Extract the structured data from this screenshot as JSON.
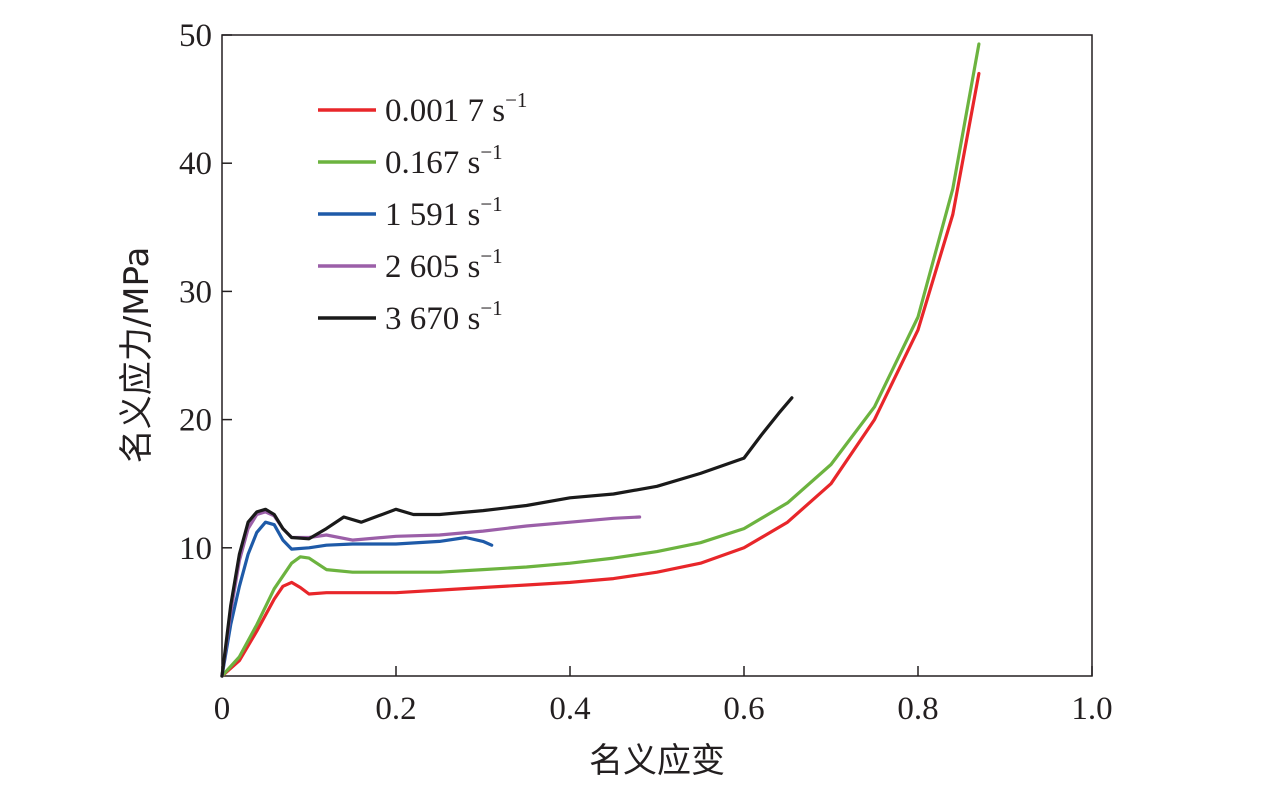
{
  "chart_data": {
    "type": "line",
    "title": "",
    "xlabel": "名义应变",
    "ylabel": "名义应力/MPa",
    "xlim": [
      0,
      1.0
    ],
    "ylim": [
      0,
      50
    ],
    "x_ticks": [
      "0",
      "0.2",
      "0.4",
      "0.6",
      "0.8",
      "1.0"
    ],
    "y_ticks": [
      "10",
      "20",
      "30",
      "40",
      "50"
    ],
    "grid": false,
    "legend_position": "top-left",
    "series": [
      {
        "name": "0.001 7 s",
        "name_sup": "−1",
        "color": "#e8262a",
        "points": [
          [
            0,
            0
          ],
          [
            0.02,
            1.2
          ],
          [
            0.04,
            3.5
          ],
          [
            0.06,
            6.0
          ],
          [
            0.07,
            7.0
          ],
          [
            0.08,
            7.3
          ],
          [
            0.09,
            6.9
          ],
          [
            0.1,
            6.4
          ],
          [
            0.12,
            6.5
          ],
          [
            0.15,
            6.5
          ],
          [
            0.2,
            6.5
          ],
          [
            0.25,
            6.7
          ],
          [
            0.3,
            6.9
          ],
          [
            0.35,
            7.1
          ],
          [
            0.4,
            7.3
          ],
          [
            0.45,
            7.6
          ],
          [
            0.5,
            8.1
          ],
          [
            0.55,
            8.8
          ],
          [
            0.6,
            10.0
          ],
          [
            0.65,
            12.0
          ],
          [
            0.7,
            15.0
          ],
          [
            0.75,
            20.0
          ],
          [
            0.8,
            27.0
          ],
          [
            0.84,
            36.0
          ],
          [
            0.87,
            47.0
          ]
        ]
      },
      {
        "name": "0.167 s",
        "name_sup": "−1",
        "color": "#6cb33f",
        "points": [
          [
            0,
            0
          ],
          [
            0.02,
            1.5
          ],
          [
            0.04,
            4.0
          ],
          [
            0.06,
            6.8
          ],
          [
            0.08,
            8.8
          ],
          [
            0.09,
            9.3
          ],
          [
            0.1,
            9.2
          ],
          [
            0.12,
            8.3
          ],
          [
            0.15,
            8.1
          ],
          [
            0.2,
            8.1
          ],
          [
            0.25,
            8.1
          ],
          [
            0.3,
            8.3
          ],
          [
            0.35,
            8.5
          ],
          [
            0.4,
            8.8
          ],
          [
            0.45,
            9.2
          ],
          [
            0.5,
            9.7
          ],
          [
            0.55,
            10.4
          ],
          [
            0.6,
            11.5
          ],
          [
            0.65,
            13.5
          ],
          [
            0.7,
            16.5
          ],
          [
            0.75,
            21.0
          ],
          [
            0.8,
            28.0
          ],
          [
            0.84,
            38.0
          ],
          [
            0.87,
            49.3
          ]
        ]
      },
      {
        "name": "1 591 s",
        "name_sup": "−1",
        "color": "#1e5aa8",
        "points": [
          [
            0,
            0
          ],
          [
            0.01,
            4.0
          ],
          [
            0.02,
            7.0
          ],
          [
            0.03,
            9.5
          ],
          [
            0.04,
            11.2
          ],
          [
            0.05,
            12.0
          ],
          [
            0.06,
            11.8
          ],
          [
            0.07,
            10.6
          ],
          [
            0.08,
            9.9
          ],
          [
            0.1,
            10.0
          ],
          [
            0.12,
            10.2
          ],
          [
            0.15,
            10.3
          ],
          [
            0.2,
            10.3
          ],
          [
            0.25,
            10.5
          ],
          [
            0.28,
            10.8
          ],
          [
            0.3,
            10.5
          ],
          [
            0.31,
            10.2
          ]
        ]
      },
      {
        "name": "2 605 s",
        "name_sup": "−1",
        "color": "#9b5fa8",
        "points": [
          [
            0,
            0
          ],
          [
            0.01,
            5.0
          ],
          [
            0.02,
            9.0
          ],
          [
            0.03,
            11.5
          ],
          [
            0.04,
            12.6
          ],
          [
            0.05,
            12.8
          ],
          [
            0.06,
            12.5
          ],
          [
            0.07,
            11.5
          ],
          [
            0.08,
            10.8
          ],
          [
            0.1,
            10.8
          ],
          [
            0.12,
            11.0
          ],
          [
            0.15,
            10.6
          ],
          [
            0.2,
            10.9
          ],
          [
            0.25,
            11.0
          ],
          [
            0.3,
            11.3
          ],
          [
            0.35,
            11.7
          ],
          [
            0.4,
            12.0
          ],
          [
            0.45,
            12.3
          ],
          [
            0.48,
            12.4
          ]
        ]
      },
      {
        "name": "3 670 s",
        "name_sup": "−1",
        "color": "#1a1a1a",
        "points": [
          [
            0,
            0
          ],
          [
            0.01,
            5.5
          ],
          [
            0.02,
            9.5
          ],
          [
            0.03,
            12.0
          ],
          [
            0.04,
            12.8
          ],
          [
            0.05,
            13.0
          ],
          [
            0.06,
            12.6
          ],
          [
            0.07,
            11.5
          ],
          [
            0.08,
            10.8
          ],
          [
            0.1,
            10.7
          ],
          [
            0.12,
            11.5
          ],
          [
            0.14,
            12.4
          ],
          [
            0.16,
            12.0
          ],
          [
            0.18,
            12.5
          ],
          [
            0.2,
            13.0
          ],
          [
            0.22,
            12.6
          ],
          [
            0.25,
            12.6
          ],
          [
            0.3,
            12.9
          ],
          [
            0.35,
            13.3
          ],
          [
            0.4,
            13.9
          ],
          [
            0.45,
            14.2
          ],
          [
            0.5,
            14.8
          ],
          [
            0.55,
            15.8
          ],
          [
            0.6,
            17.0
          ],
          [
            0.62,
            18.8
          ],
          [
            0.64,
            20.5
          ],
          [
            0.655,
            21.7
          ]
        ]
      }
    ]
  }
}
